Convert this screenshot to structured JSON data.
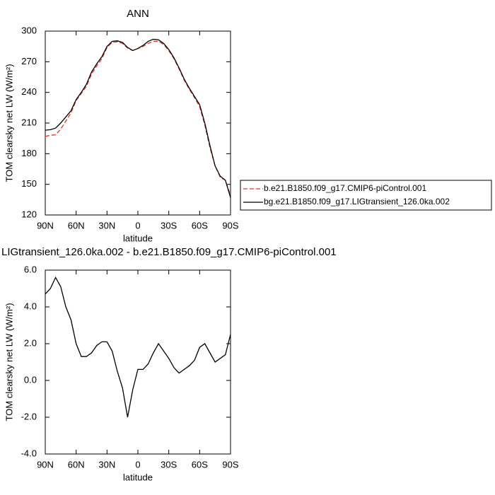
{
  "chart_data": [
    {
      "type": "line",
      "title": "ANN",
      "xlabel": "latitude",
      "ylabel": "TOM clearsky net LW (W/m²)",
      "x": [
        90,
        85,
        80,
        75,
        70,
        65,
        60,
        55,
        50,
        45,
        40,
        35,
        30,
        25,
        20,
        15,
        10,
        5,
        0,
        -5,
        -10,
        -15,
        -20,
        -25,
        -30,
        -35,
        -40,
        -45,
        -50,
        -55,
        -60,
        -65,
        -70,
        -75,
        -80,
        -85,
        -90
      ],
      "series": [
        {
          "name": "b.e21.B1850.f09_g17.CMIP6-piControl.001",
          "color": "#e8302a",
          "dashed": true,
          "values": [
            197,
            198,
            198.5,
            204,
            212,
            220,
            232,
            239,
            246,
            258,
            266,
            273,
            284,
            289,
            289.5,
            288,
            283.5,
            281,
            283,
            285,
            288,
            290,
            290,
            287,
            281,
            273,
            263,
            252,
            243,
            235,
            226,
            208,
            186,
            168,
            157,
            154,
            139
          ]
        },
        {
          "name": "bg.e21.B1850.f09_g17.LIGtransient_126.0ka.002",
          "color": "#000000",
          "dashed": false,
          "values": [
            203,
            203.5,
            205,
            210,
            216,
            222,
            233,
            240,
            248,
            260,
            268,
            275,
            285,
            290,
            290.5,
            289,
            284,
            281,
            283,
            286,
            290,
            292,
            291.5,
            288,
            282,
            274,
            264,
            253,
            244,
            236,
            228,
            210,
            188,
            168,
            158,
            154,
            137
          ]
        }
      ],
      "xlim": [
        90,
        -90
      ],
      "xticks": [
        {
          "value": 90,
          "label": "90N"
        },
        {
          "value": 60,
          "label": "60N"
        },
        {
          "value": 30,
          "label": "30N"
        },
        0,
        {
          "value": -30,
          "label": "30S"
        },
        {
          "value": -60,
          "label": "60S"
        },
        {
          "value": -90,
          "label": "90S"
        }
      ],
      "ylim": [
        120,
        300
      ],
      "yticks": [
        120,
        150,
        180,
        210,
        240,
        270,
        300
      ],
      "legend": "right"
    },
    {
      "type": "line",
      "title": "LIGtransient_126.0ka.002 - b.e21.B1850.f09_g17.CMIP6-piControl.001",
      "xlabel": "latitude",
      "ylabel": "TOM clearsky net LW (W/m²)",
      "x": [
        90,
        85,
        80,
        75,
        70,
        65,
        60,
        55,
        50,
        45,
        40,
        35,
        30,
        25,
        20,
        15,
        10,
        5,
        0,
        -5,
        -10,
        -15,
        -20,
        -25,
        -30,
        -35,
        -40,
        -45,
        -50,
        -55,
        -60,
        -65,
        -70,
        -75,
        -80,
        -85,
        -90
      ],
      "series": [
        {
          "color": "#000000",
          "dashed": false,
          "values": [
            4.7,
            5.0,
            5.6,
            5.1,
            4.0,
            3.3,
            2.0,
            1.3,
            1.3,
            1.5,
            1.9,
            2.1,
            2.1,
            1.6,
            0.5,
            -0.4,
            -2.0,
            -0.5,
            0.6,
            0.6,
            0.9,
            1.5,
            2.0,
            1.6,
            1.2,
            0.7,
            0.4,
            0.6,
            0.8,
            1.1,
            1.8,
            2.0,
            1.5,
            1.0,
            1.2,
            1.4,
            2.5
          ]
        }
      ],
      "xlim": [
        90,
        -90
      ],
      "xticks": [
        {
          "value": 90,
          "label": "90N"
        },
        {
          "value": 60,
          "label": "60N"
        },
        {
          "value": 30,
          "label": "30N"
        },
        0,
        {
          "value": -30,
          "label": "30S"
        },
        {
          "value": -60,
          "label": "60S"
        },
        {
          "value": -90,
          "label": "90S"
        }
      ],
      "ylim": [
        -4,
        6
      ],
      "yticks": [
        {
          "value": -4,
          "label": "-4.0"
        },
        {
          "value": -2,
          "label": "-2.0"
        },
        {
          "value": 0,
          "label": "0.0"
        },
        {
          "value": 2,
          "label": "2.0"
        },
        {
          "value": 4,
          "label": "4.0"
        },
        {
          "value": 6,
          "label": "6.0"
        }
      ]
    }
  ]
}
